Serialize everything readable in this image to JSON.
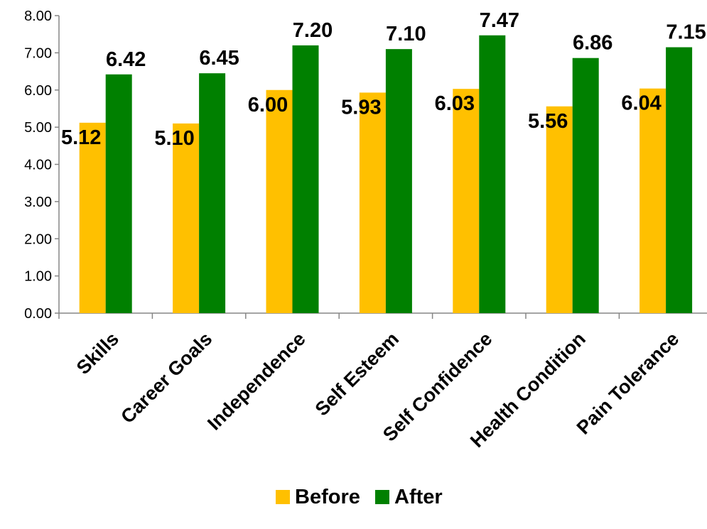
{
  "chart_data": {
    "type": "bar",
    "categories": [
      "Skills",
      "Career Goals",
      "Independence",
      "Self Esteem",
      "Self Confidence",
      "Health Condition",
      "Pain Tolerance"
    ],
    "series": [
      {
        "name": "Before",
        "color": "#FFC000",
        "values": [
          5.12,
          5.1,
          6.0,
          5.93,
          6.03,
          5.56,
          6.04
        ]
      },
      {
        "name": "After",
        "color": "#008000",
        "values": [
          6.42,
          6.45,
          7.2,
          7.1,
          7.47,
          6.86,
          7.15
        ]
      }
    ],
    "value_labels": [
      [
        "5.12",
        "5.10",
        "6.00",
        "5.93",
        "6.03",
        "5.56",
        "6.04"
      ],
      [
        "6.42",
        "6.45",
        "7.20",
        "7.10",
        "7.47",
        "6.86",
        "7.15"
      ]
    ],
    "yticks": [
      "0.00",
      "1.00",
      "2.00",
      "3.00",
      "4.00",
      "5.00",
      "6.00",
      "7.00",
      "8.00"
    ],
    "ylim": [
      0,
      8
    ],
    "grid": false,
    "legend_position": "bottom",
    "title": "",
    "xlabel": "",
    "ylabel": ""
  }
}
